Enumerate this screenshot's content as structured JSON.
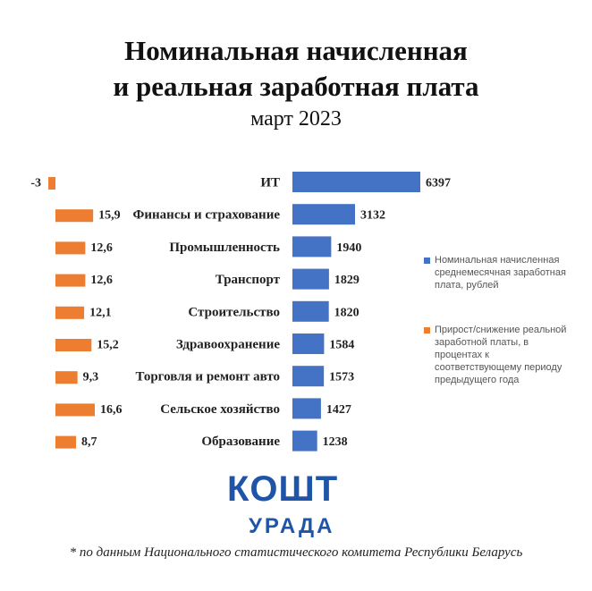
{
  "title_line1": "Номинальная начисленная",
  "title_line2": "и реальная заработная плата",
  "subtitle": "март 2023",
  "chart_data": {
    "type": "bar",
    "orientation": "horizontal",
    "categories": [
      "ИТ",
      "Финансы и страхование",
      "Промышленность",
      "Транспорт",
      "Строительство",
      "Здравоохранение",
      "Торговля и ремонт авто",
      "Сельское хозяйство",
      "Образование"
    ],
    "series": [
      {
        "name": "Номинальная начисленная среднемесячная заработная плата, рублей",
        "color": "#4472c4",
        "values": [
          6397,
          3132,
          1940,
          1829,
          1820,
          1584,
          1573,
          1427,
          1238
        ],
        "labels": [
          "6397",
          "3132",
          "1940",
          "1829",
          "1820",
          "1584",
          "1573",
          "1427",
          "1238"
        ]
      },
      {
        "name": "Прирост/снижение реальной заработной платы, в процентах к соответствующему периоду предыдущего года",
        "color": "#ed7d31",
        "values": [
          -3,
          15.9,
          12.6,
          12.6,
          12.1,
          15.2,
          9.3,
          16.6,
          8.7
        ],
        "labels": [
          "-3",
          "15,9",
          "12,6",
          "12,6",
          "12,1",
          "15,2",
          "9,3",
          "16,6",
          "8,7"
        ]
      }
    ],
    "legend_position": "right",
    "grid": false
  },
  "legend": [
    {
      "text": "Номинальная начисленная среднемесячная заработная плата, рублей",
      "color": "#4472c4"
    },
    {
      "text": "Прирост/снижение реальной заработной платы, в процентах к соответствующему периоду предыдущего года",
      "color": "#ed7d31"
    }
  ],
  "logo": {
    "main": "КОШТ",
    "sub": "УРАДА"
  },
  "footnote": "* по данным Национального статистического комитета Республики Беларусь"
}
